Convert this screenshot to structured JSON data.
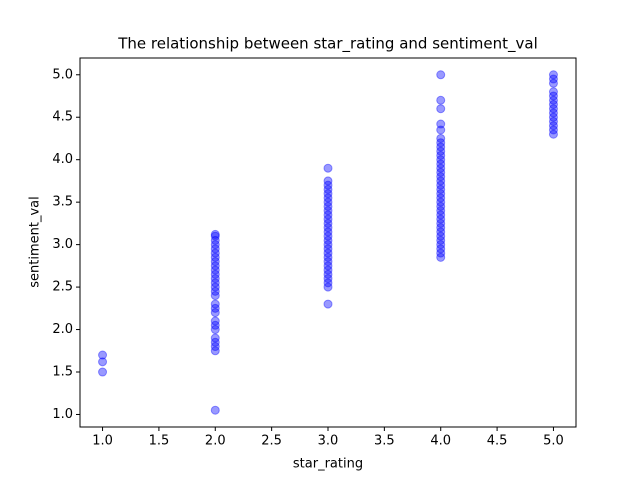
{
  "chart_data": {
    "type": "scatter",
    "title": "The relationship between star_rating and sentiment_val",
    "x_label": "star_rating",
    "y_label": "sentiment_val",
    "color": "blue",
    "alpha": 0.4,
    "x": [
      1,
      1,
      1,
      2,
      2,
      2,
      2,
      2,
      2,
      2,
      2,
      2,
      2,
      2,
      2,
      2,
      2,
      2,
      2,
      2,
      2,
      2,
      2,
      2,
      2,
      2,
      2,
      2,
      2,
      2,
      3,
      3,
      3,
      3,
      3,
      3,
      3,
      3,
      3,
      3,
      3,
      3,
      3,
      3,
      3,
      3,
      3,
      3,
      3,
      3,
      3,
      3,
      3,
      3,
      3,
      3,
      3,
      3,
      4,
      4,
      4,
      4,
      4,
      4,
      4,
      4,
      4,
      4,
      4,
      4,
      4,
      4,
      4,
      4,
      4,
      4,
      4,
      4,
      4,
      4,
      4,
      4,
      4,
      4,
      4,
      4,
      4,
      4,
      4,
      4,
      4,
      4,
      5,
      5,
      5,
      5,
      5,
      5,
      5,
      5,
      5,
      5,
      5,
      5,
      5,
      5
    ],
    "values": [
      1.7,
      1.62,
      1.5,
      1.05,
      1.75,
      1.8,
      1.85,
      1.9,
      2.0,
      2.05,
      2.1,
      2.2,
      2.25,
      2.3,
      2.4,
      2.45,
      2.5,
      2.55,
      2.6,
      2.65,
      2.7,
      2.75,
      2.8,
      2.85,
      2.9,
      2.95,
      3.0,
      3.05,
      3.1,
      3.12,
      2.3,
      2.5,
      2.55,
      2.6,
      2.65,
      2.7,
      2.75,
      2.8,
      2.85,
      2.9,
      2.95,
      3.0,
      3.05,
      3.1,
      3.15,
      3.2,
      3.25,
      3.3,
      3.35,
      3.4,
      3.45,
      3.5,
      3.55,
      3.6,
      3.65,
      3.7,
      3.75,
      3.9,
      2.85,
      2.9,
      2.95,
      3.0,
      3.05,
      3.1,
      3.15,
      3.2,
      3.25,
      3.3,
      3.35,
      3.4,
      3.45,
      3.5,
      3.55,
      3.6,
      3.65,
      3.7,
      3.75,
      3.8,
      3.85,
      3.9,
      3.95,
      4.0,
      4.05,
      4.1,
      4.15,
      4.2,
      4.25,
      4.35,
      4.42,
      4.6,
      4.7,
      5.0,
      4.3,
      4.35,
      4.4,
      4.45,
      4.5,
      4.55,
      4.6,
      4.65,
      4.7,
      4.75,
      4.8,
      4.9,
      4.95,
      5.0
    ],
    "xlim": [
      0.8,
      5.2
    ],
    "ylim": [
      0.8525,
      5.1975
    ],
    "xticks": [
      {
        "value": 1,
        "label": "1.0"
      },
      {
        "value": 1.5,
        "label": "1.5"
      },
      {
        "value": 2,
        "label": "2.0"
      },
      {
        "value": 2.5,
        "label": "2.5"
      },
      {
        "value": 3,
        "label": "3.0"
      },
      {
        "value": 3.5,
        "label": "3.5"
      },
      {
        "value": 4,
        "label": "4.0"
      },
      {
        "value": 4.5,
        "label": "4.5"
      },
      {
        "value": 5,
        "label": "5.0"
      }
    ],
    "yticks": [
      {
        "value": 1,
        "label": "1.0"
      },
      {
        "value": 1.5,
        "label": "1.5"
      },
      {
        "value": 2,
        "label": "2.0"
      },
      {
        "value": 2.5,
        "label": "2.5"
      },
      {
        "value": 3,
        "label": "3.0"
      },
      {
        "value": 3.5,
        "label": "3.5"
      },
      {
        "value": 4,
        "label": "4.0"
      },
      {
        "value": 4.5,
        "label": "4.5"
      },
      {
        "value": 5,
        "label": "5.0"
      }
    ]
  }
}
